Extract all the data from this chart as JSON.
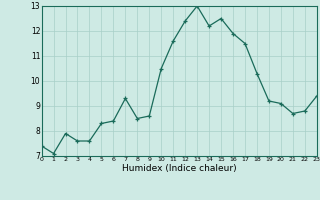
{
  "x": [
    0,
    1,
    2,
    3,
    4,
    5,
    6,
    7,
    8,
    9,
    10,
    11,
    12,
    13,
    14,
    15,
    16,
    17,
    18,
    19,
    20,
    21,
    22,
    23
  ],
  "y": [
    7.4,
    7.1,
    7.9,
    7.6,
    7.6,
    8.3,
    8.4,
    9.3,
    8.5,
    8.6,
    10.5,
    11.6,
    12.4,
    13.0,
    12.2,
    12.5,
    11.9,
    11.5,
    10.3,
    9.2,
    9.1,
    8.7,
    8.8,
    9.4
  ],
  "xlabel": "Humidex (Indice chaleur)",
  "ylim": [
    7,
    13
  ],
  "xlim": [
    0,
    23
  ],
  "line_color": "#1a6b5a",
  "marker": "+",
  "bg_color": "#ceeae4",
  "grid_color_major": "#a8cfc8",
  "grid_color_minor": "#b8dcd6",
  "spine_color": "#1a6b5a",
  "tick_label_color": "#000000",
  "xlabel_color": "#000000"
}
